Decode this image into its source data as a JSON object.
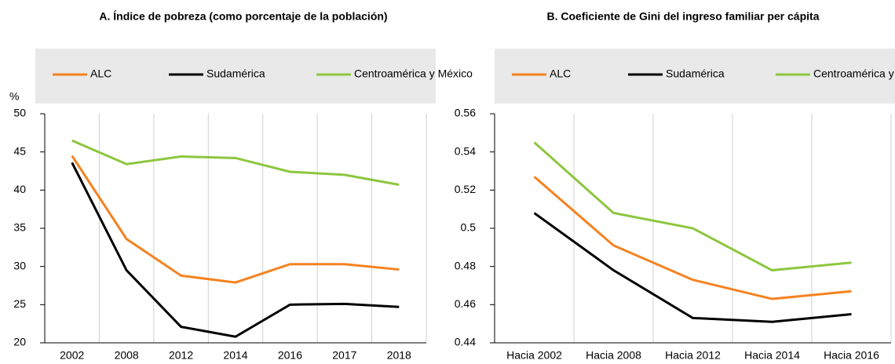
{
  "chart_data": [
    {
      "type": "line",
      "title": "A. Índice de pobreza (como porcentaje de la población)",
      "y_axis_label": "%",
      "categories": [
        "2002",
        "2008",
        "2012",
        "2014",
        "2016",
        "2017",
        "2018"
      ],
      "series": [
        {
          "name": "ALC",
          "color": "#f58220",
          "values": [
            44.5,
            33.6,
            28.8,
            27.9,
            30.3,
            30.3,
            29.6
          ]
        },
        {
          "name": "Sudamérica",
          "color": "#000000",
          "values": [
            43.6,
            29.5,
            22.1,
            20.8,
            25.0,
            25.1,
            24.7
          ]
        },
        {
          "name": "Centroamérica y México",
          "color": "#8dc63f",
          "values": [
            46.5,
            43.4,
            44.4,
            44.2,
            42.4,
            42.0,
            40.7
          ]
        }
      ],
      "ylim": [
        20,
        50
      ],
      "yticks": [
        20,
        25,
        30,
        35,
        40,
        45,
        50
      ],
      "grid": "x",
      "legend": "top"
    },
    {
      "type": "line",
      "title": "B. Coeficiente de Gini del ingreso familiar per cápita",
      "categories": [
        "Hacia 2002",
        "Hacia 2008",
        "Hacia 2012",
        "Hacia 2014",
        "Hacia 2016"
      ],
      "series": [
        {
          "name": "ALC",
          "color": "#f58220",
          "values": [
            0.527,
            0.491,
            0.473,
            0.463,
            0.467
          ]
        },
        {
          "name": "Sudamérica",
          "color": "#000000",
          "values": [
            0.508,
            0.478,
            0.453,
            0.451,
            0.455
          ]
        },
        {
          "name": "Centroamérica y México",
          "color": "#8dc63f",
          "values": [
            0.545,
            0.508,
            0.5,
            0.478,
            0.482
          ]
        }
      ],
      "ylim": [
        0.44,
        0.56
      ],
      "yticks": [
        0.44,
        0.46,
        0.48,
        0.5,
        0.52,
        0.54,
        0.56
      ],
      "grid": "x",
      "legend": "top"
    }
  ]
}
